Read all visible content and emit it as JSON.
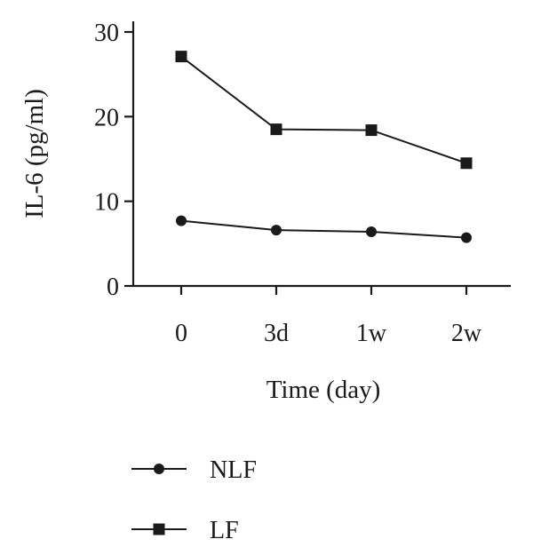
{
  "chart_data": {
    "type": "line",
    "title": "",
    "xlabel": "Time (day)",
    "ylabel": "IL-6 (pg/ml)",
    "categories": [
      "0",
      "3d",
      "1w",
      "2w"
    ],
    "ylim": [
      0,
      30
    ],
    "yticks": [
      0,
      10,
      20,
      30
    ],
    "grid": false,
    "legend_position": "bottom-left",
    "series": [
      {
        "name": "NLF",
        "marker": "circle",
        "color": "#1a1a1a",
        "values": [
          7.7,
          6.6,
          6.4,
          5.7
        ]
      },
      {
        "name": "LF",
        "marker": "square",
        "color": "#1a1a1a",
        "values": [
          27.1,
          18.5,
          18.4,
          14.5
        ]
      }
    ]
  }
}
